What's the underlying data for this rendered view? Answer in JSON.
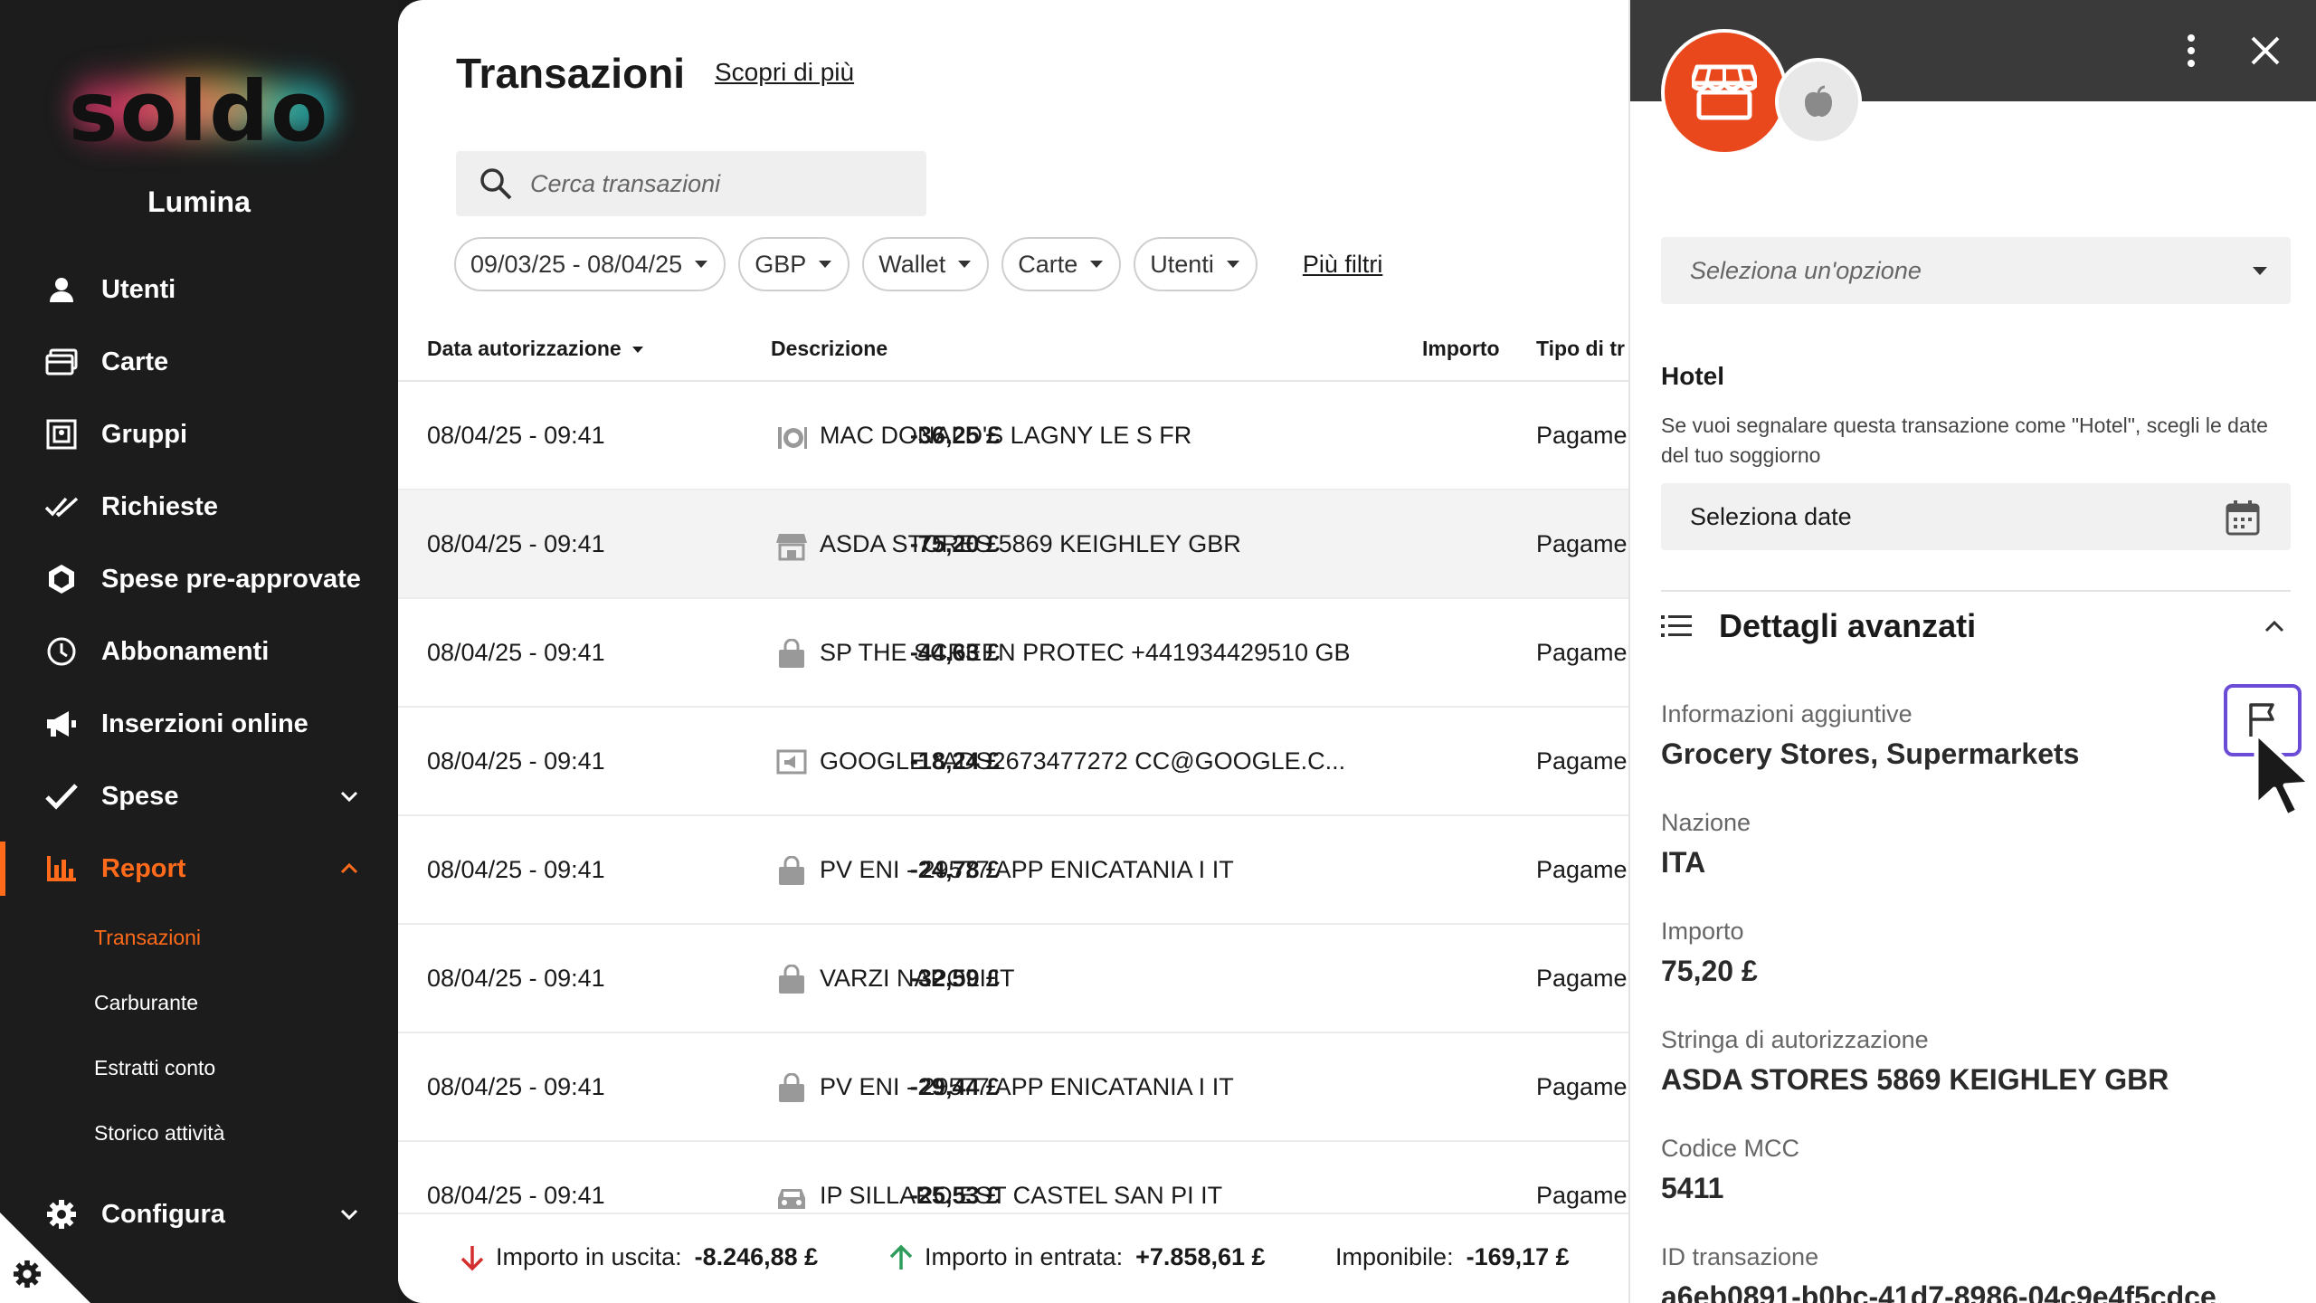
{
  "brand": {
    "logo": "soldo",
    "company": "Lumina",
    "accent": "#ff6b1a"
  },
  "sidebar": {
    "items": [
      {
        "label": "Utenti",
        "icon": "user-icon"
      },
      {
        "label": "Carte",
        "icon": "card-icon"
      },
      {
        "label": "Gruppi",
        "icon": "groups-icon"
      },
      {
        "label": "Richieste",
        "icon": "double-check-icon"
      },
      {
        "label": "Spese pre-approvate",
        "icon": "shield-icon"
      },
      {
        "label": "Abbonamenti",
        "icon": "clock-icon"
      },
      {
        "label": "Inserzioni online",
        "icon": "megaphone-icon"
      },
      {
        "label": "Spese",
        "icon": "check-icon"
      },
      {
        "label": "Report",
        "icon": "chart-icon"
      }
    ],
    "report_sub": [
      "Transazioni",
      "Carburante",
      "Estratti conto",
      "Storico attività"
    ],
    "configure": "Configura"
  },
  "main": {
    "title": "Transazioni",
    "learn_more": "Scopri di più",
    "search_placeholder": "Cerca transazioni",
    "filters": [
      "09/03/25 - 08/04/25",
      "GBP",
      "Wallet",
      "Carte",
      "Utenti"
    ],
    "more_filters": "Più filtri",
    "columns": {
      "date": "Data autorizzazione",
      "desc": "Descrizione",
      "amount": "Importo",
      "type": "Tipo di tr"
    },
    "rows": [
      {
        "date": "08/04/25 - 09:41",
        "icon": "restaurant-icon",
        "desc": "MAC DONALD'S LAGNY LE S FR",
        "amount": "-36,25 £",
        "type": "Pagamer"
      },
      {
        "date": "08/04/25 - 09:41",
        "icon": "store-icon",
        "desc": "ASDA STORES 5869 KEIGHLEY GBR",
        "amount": "-75,20 £",
        "type": "Pagamer"
      },
      {
        "date": "08/04/25 - 09:41",
        "icon": "bag-icon",
        "desc": "SP THE SCREEN PROTEC +441934429510 GB",
        "amount": "-44,63 £",
        "type": "Pagamer"
      },
      {
        "date": "08/04/25 - 09:41",
        "icon": "ads-icon",
        "desc": "GOOGLE *ADS2673477272 CC@GOOGLE.C...",
        "amount": "-18,24 £",
        "type": "Pagamer"
      },
      {
        "date": "08/04/25 - 09:41",
        "icon": "bag-icon",
        "desc": "PV ENI - 29577 APP ENICATANIA I IT",
        "amount": "-24,78 £",
        "type": "Pagamer"
      },
      {
        "date": "08/04/25 - 09:41",
        "icon": "bag-icon",
        "desc": "VARZI NAPOLI IT",
        "amount": "-32,59 £",
        "type": "Pagamer"
      },
      {
        "date": "08/04/25 - 09:41",
        "icon": "bag-icon",
        "desc": "PV ENI - 29577 APP ENICATANIA I IT",
        "amount": "-29,44 £",
        "type": "Pagamer"
      },
      {
        "date": "08/04/25 - 09:41",
        "icon": "car-icon",
        "desc": "IP SILLARO EST CASTEL SAN PI IT",
        "amount": "-25,53 £",
        "type": "Pagamer"
      }
    ],
    "footer": {
      "out_label": "Importo in uscita:",
      "out_value": "-8.246,88 £",
      "in_label": "Importo in entrata:",
      "in_value": "+7.858,61 £",
      "tax_label": "Imponibile:",
      "tax_value": "-169,17 £"
    }
  },
  "panel": {
    "select_placeholder": "Seleziona un'opzione",
    "hotel_title": "Hotel",
    "hotel_desc": "Se vuoi segnalare questa transazione come \"Hotel\", scegli le date del tuo soggiorno",
    "date_placeholder": "Seleziona date",
    "advanced": "Dettagli avanzati",
    "details": [
      {
        "k": "Informazioni aggiuntive",
        "v": "Grocery Stores, Supermarkets"
      },
      {
        "k": "Nazione",
        "v": "ITA"
      },
      {
        "k": "Importo",
        "v": "75,20 £"
      },
      {
        "k": "Stringa di autorizzazione",
        "v": "ASDA STORES 5869 KEIGHLEY GBR"
      },
      {
        "k": "Codice MCC",
        "v": "5411"
      },
      {
        "k": "ID transazione",
        "v": "a6eb0891-b0bc-41d7-8986-04c9e4f5cdce"
      }
    ]
  }
}
